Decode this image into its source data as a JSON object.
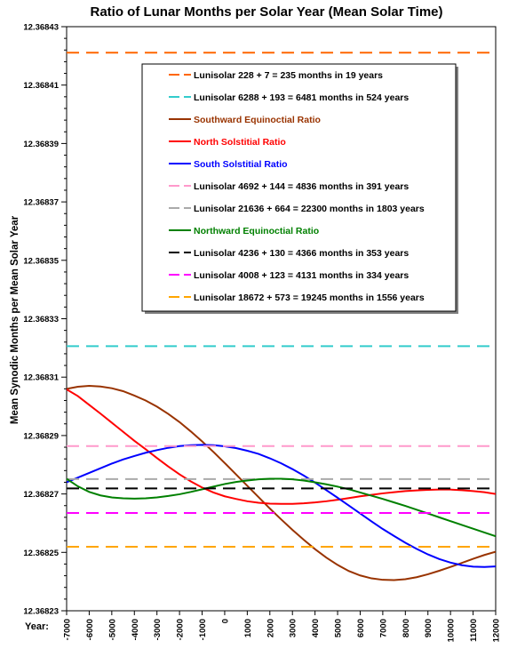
{
  "chart_data": {
    "type": "line",
    "title": "Ratio of Lunar Months per Solar Year (Mean Solar Time)",
    "ylabel": "Mean Synodic Months per Mean Solar Year",
    "x_axis_prefix": "Year:",
    "xlim": [
      -7000,
      12000
    ],
    "ylim": [
      12.36823,
      12.36843
    ],
    "x_ticks": [
      "-7000",
      "-6000",
      "-5000",
      "-4000",
      "-3000",
      "-2000",
      "-1000",
      "0",
      "1000",
      "2000",
      "3000",
      "4000",
      "5000",
      "6000",
      "7000",
      "8000",
      "9000",
      "10000",
      "11000",
      "12000"
    ],
    "y_ticks": [
      "12.36823",
      "12.36825",
      "12.36827",
      "12.36829",
      "12.36831",
      "12.36833",
      "12.36835",
      "12.36837",
      "12.36839",
      "12.36841",
      "12.36843"
    ],
    "legend_placement": "top-right (inside plot)",
    "series": [
      {
        "name": "Lunisolar 228 + 7 = 235 months in 19 years",
        "color": "#ff6600",
        "style": "dashed",
        "constant": 12.3684211
      },
      {
        "name": "Lunisolar 6288 + 193 = 6481 months in 524 years",
        "color": "#33cccc",
        "style": "dashed",
        "constant": 12.3683206
      },
      {
        "name": "Southward Equinoctial Ratio",
        "color": "#993300",
        "style": "solid",
        "x": [
          -7000,
          -6500,
          -6000,
          -5500,
          -5000,
          -4500,
          -4000,
          -3500,
          -3000,
          -2500,
          -2000,
          -1500,
          -1000,
          -500,
          0,
          500,
          1000,
          1500,
          2000,
          2500,
          3000,
          3500,
          4000,
          4500,
          5000,
          5500,
          6000,
          6500,
          7000,
          7500,
          8000,
          8500,
          9000,
          9500,
          10000,
          10500,
          11000,
          11500,
          12000
        ],
        "y": [
          12.368306,
          12.3683067,
          12.368307,
          12.3683068,
          12.3683062,
          12.3683052,
          12.3683037,
          12.368302,
          12.3682999,
          12.3682974,
          12.3682946,
          12.3682914,
          12.368288,
          12.3682844,
          12.3682806,
          12.3682767,
          12.3682728,
          12.3682689,
          12.368265,
          12.3682613,
          12.3682577,
          12.3682543,
          12.3682511,
          12.3682482,
          12.3682457,
          12.3682436,
          12.3682421,
          12.3682411,
          12.3682406,
          12.3682405,
          12.3682408,
          12.3682415,
          12.3682425,
          12.3682437,
          12.368245,
          12.3682464,
          12.3682478,
          12.3682491,
          12.3682502
        ]
      },
      {
        "name": "North Solstitial Ratio",
        "color": "#ff0000",
        "style": "solid",
        "x": [
          -7000,
          -6500,
          -6000,
          -5500,
          -5000,
          -4500,
          -4000,
          -3500,
          -3000,
          -2500,
          -2000,
          -1500,
          -1000,
          -500,
          0,
          500,
          1000,
          1500,
          2000,
          2500,
          3000,
          3500,
          4000,
          4500,
          5000,
          5500,
          6000,
          6500,
          7000,
          7500,
          8000,
          8500,
          9000,
          9500,
          10000,
          10500,
          11000,
          11500,
          12000
        ],
        "y": [
          12.3683058,
          12.3683035,
          12.3683005,
          12.3682975,
          12.3682944,
          12.3682913,
          12.3682882,
          12.3682853,
          12.3682823,
          12.3682794,
          12.3682767,
          12.3682743,
          12.3682722,
          12.3682705,
          12.3682692,
          12.3682683,
          12.3682675,
          12.368267,
          12.3682667,
          12.3682666,
          12.3682666,
          12.3682668,
          12.3682671,
          12.3682675,
          12.368268,
          12.3682686,
          12.3682692,
          12.3682697,
          12.3682702,
          12.3682706,
          12.368271,
          12.3682712,
          12.3682714,
          12.3682715,
          12.3682715,
          12.3682713,
          12.368271,
          12.3682706,
          12.36827
        ]
      },
      {
        "name": "South Solstitial Ratio",
        "color": "#0000ff",
        "style": "solid",
        "x": [
          -7000,
          -6500,
          -6000,
          -5500,
          -5000,
          -4500,
          -4000,
          -3500,
          -3000,
          -2500,
          -2000,
          -1500,
          -1000,
          -500,
          0,
          500,
          1000,
          1500,
          2000,
          2500,
          3000,
          3500,
          4000,
          4500,
          5000,
          5500,
          6000,
          6500,
          7000,
          7500,
          8000,
          8500,
          9000,
          9500,
          10000,
          10500,
          11000,
          11500,
          12000
        ],
        "y": [
          12.368274,
          12.3682756,
          12.3682772,
          12.3682788,
          12.3682804,
          12.3682818,
          12.368283,
          12.3682841,
          12.368285,
          12.3682858,
          12.3682864,
          12.3682867,
          12.3682868,
          12.3682867,
          12.3682863,
          12.3682857,
          12.3682848,
          12.3682837,
          12.3682822,
          12.3682805,
          12.3682785,
          12.3682763,
          12.3682739,
          12.3682713,
          12.3682687,
          12.368266,
          12.3682633,
          12.3682606,
          12.368258,
          12.3682556,
          12.3682533,
          12.3682512,
          12.3682493,
          12.3682477,
          12.3682465,
          12.3682456,
          12.3682451,
          12.368245,
          12.3682452
        ]
      },
      {
        "name": "Lunisolar 4692 + 144 = 4836 months in 391 years",
        "color": "#ff99cc",
        "style": "dashed",
        "constant": 12.3682864
      },
      {
        "name": "Lunisolar 21636 + 664 = 22300 months in 1803 years",
        "color": "#aaaaaa",
        "style": "dashed",
        "constant": 12.3682751
      },
      {
        "name": "Northward Equinoctial Ratio",
        "color": "#008000",
        "style": "solid",
        "x": [
          -7000,
          -6500,
          -6000,
          -5500,
          -5000,
          -4500,
          -4000,
          -3500,
          -3000,
          -2500,
          -2000,
          -1500,
          -1000,
          -500,
          0,
          500,
          1000,
          1500,
          2000,
          2500,
          3000,
          3500,
          4000,
          4500,
          5000,
          5500,
          6000,
          6500,
          7000,
          7500,
          8000,
          8500,
          9000,
          9500,
          10000,
          10500,
          11000,
          11500,
          12000
        ],
        "y": [
          12.3682752,
          12.3682726,
          12.3682707,
          12.3682695,
          12.3682688,
          12.3682685,
          12.3682684,
          12.3682685,
          12.3682688,
          12.3682693,
          12.3682699,
          12.3682707,
          12.3682716,
          12.3682725,
          12.3682734,
          12.3682741,
          12.3682746,
          12.368275,
          12.3682752,
          12.3682752,
          12.368275,
          12.3682746,
          12.368274,
          12.3682733,
          12.3682725,
          12.3682716,
          12.3682705,
          12.3682694,
          12.3682683,
          12.3682671,
          12.3682659,
          12.3682646,
          12.3682633,
          12.368262,
          12.3682607,
          12.3682594,
          12.3682581,
          12.3682568,
          12.3682555
        ]
      },
      {
        "name": "Lunisolar 4236 + 130 = 4366 months in 353 years",
        "color": "#000000",
        "style": "dashed",
        "constant": 12.3682719
      },
      {
        "name": "Lunisolar 4008 + 123 = 4131 months in 334 years",
        "color": "#ff00ff",
        "style": "dashed",
        "constant": 12.3682635
      },
      {
        "name": "Lunisolar 18672 + 573 = 19245 months in 1556 years",
        "color": "#ffa500",
        "style": "dashed",
        "constant": 12.3682519
      }
    ]
  }
}
